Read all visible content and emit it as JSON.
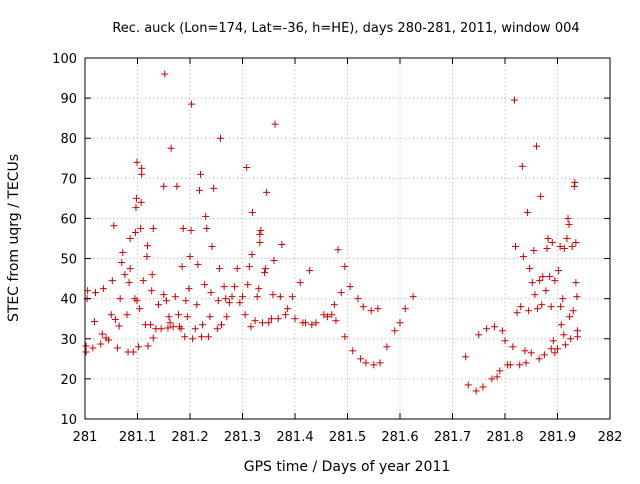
{
  "chart_data": {
    "type": "scatter",
    "title": "Rec. auck (Lon=174, Lat=-36, h=HE), days 280-281, 2011, window 004",
    "xlabel": "GPS time / Days of year 2011",
    "ylabel": "STEC from uqrg / TECUs",
    "xlim": [
      281,
      282
    ],
    "ylim": [
      10,
      100
    ],
    "x_ticks": [
      "281",
      "281.1",
      "281.2",
      "281.3",
      "281.4",
      "281.5",
      "281.6",
      "281.7",
      "281.8",
      "281.9",
      "282"
    ],
    "y_ticks": [
      "10",
      "20",
      "30",
      "40",
      "50",
      "60",
      "70",
      "80",
      "90",
      "100"
    ],
    "grid": true,
    "legend": "none",
    "marker": "+",
    "marker_color": "#cc0000",
    "series": [
      {
        "points": [
          [
            281.002,
            26.7
          ],
          [
            281.002,
            28.2
          ],
          [
            281.004,
            40.0
          ],
          [
            281.005,
            42.0
          ],
          [
            281.015,
            27.7
          ],
          [
            281.018,
            34.3
          ],
          [
            281.02,
            41.5
          ],
          [
            281.03,
            28.7
          ],
          [
            281.033,
            31.2
          ],
          [
            281.035,
            42.5
          ],
          [
            281.04,
            30.2
          ],
          [
            281.045,
            29.7
          ],
          [
            281.05,
            36.0
          ],
          [
            281.052,
            44.5
          ],
          [
            281.055,
            58.2
          ],
          [
            281.058,
            34.8
          ],
          [
            281.062,
            27.7
          ],
          [
            281.065,
            33.2
          ],
          [
            281.067,
            40.0
          ],
          [
            281.07,
            49.0
          ],
          [
            281.072,
            51.5
          ],
          [
            281.076,
            46.0
          ],
          [
            281.08,
            36.0
          ],
          [
            281.082,
            26.7
          ],
          [
            281.084,
            44.0
          ],
          [
            281.086,
            47.5
          ],
          [
            281.086,
            55.0
          ],
          [
            281.092,
            26.7
          ],
          [
            281.095,
            40.0
          ],
          [
            281.096,
            56.5
          ],
          [
            281.097,
            62.7
          ],
          [
            281.098,
            65.0
          ],
          [
            281.099,
            74.0
          ],
          [
            281.099,
            39.5
          ],
          [
            281.102,
            28.0
          ],
          [
            281.104,
            37.5
          ],
          [
            281.106,
            57.5
          ],
          [
            281.107,
            64.0
          ],
          [
            281.108,
            71.0
          ],
          [
            281.108,
            72.5
          ],
          [
            281.111,
            44.5
          ],
          [
            281.115,
            33.5
          ],
          [
            281.118,
            50.5
          ],
          [
            281.119,
            53.2
          ],
          [
            281.12,
            28.2
          ],
          [
            281.125,
            33.5
          ],
          [
            281.127,
            42.0
          ],
          [
            281.128,
            46.0
          ],
          [
            281.13,
            57.5
          ],
          [
            281.13,
            30.2
          ],
          [
            281.135,
            32.5
          ],
          [
            281.14,
            38.5
          ],
          [
            281.145,
            32.5
          ],
          [
            281.15,
            41.0
          ],
          [
            281.15,
            68.0
          ],
          [
            281.152,
            96.0
          ],
          [
            281.155,
            39.5
          ],
          [
            281.158,
            32.7
          ],
          [
            281.16,
            35.5
          ],
          [
            281.162,
            34.0
          ],
          [
            281.164,
            77.5
          ],
          [
            281.168,
            33.0
          ],
          [
            281.172,
            40.5
          ],
          [
            281.175,
            68.0
          ],
          [
            281.178,
            36.0
          ],
          [
            281.18,
            33.0
          ],
          [
            281.183,
            32.5
          ],
          [
            281.185,
            48.0
          ],
          [
            281.187,
            57.5
          ],
          [
            281.19,
            30.5
          ],
          [
            281.192,
            39.5
          ],
          [
            281.195,
            35.5
          ],
          [
            281.198,
            42.5
          ],
          [
            281.2,
            50.5
          ],
          [
            281.202,
            57.0
          ],
          [
            281.203,
            88.5
          ],
          [
            281.205,
            30.0
          ],
          [
            281.21,
            32.5
          ],
          [
            281.213,
            38.5
          ],
          [
            281.215,
            48.5
          ],
          [
            281.218,
            67.0
          ],
          [
            281.22,
            71.0
          ],
          [
            281.222,
            30.5
          ],
          [
            281.224,
            33.5
          ],
          [
            281.228,
            43.5
          ],
          [
            281.23,
            60.5
          ],
          [
            281.232,
            57.5
          ],
          [
            281.235,
            30.5
          ],
          [
            281.238,
            35.5
          ],
          [
            281.24,
            41.5
          ],
          [
            281.242,
            53.0
          ],
          [
            281.245,
            67.5
          ],
          [
            281.252,
            32.5
          ],
          [
            281.254,
            39.5
          ],
          [
            281.256,
            47.5
          ],
          [
            281.258,
            80.0
          ],
          [
            281.26,
            33.5
          ],
          [
            281.265,
            43.0
          ],
          [
            281.268,
            40.0
          ],
          [
            281.27,
            35.5
          ],
          [
            281.275,
            39.0
          ],
          [
            281.28,
            40.5
          ],
          [
            281.285,
            43.0
          ],
          [
            281.29,
            47.5
          ],
          [
            281.295,
            39.0
          ],
          [
            281.3,
            40.5
          ],
          [
            281.305,
            36.0
          ],
          [
            281.308,
            72.7
          ],
          [
            281.31,
            43.5
          ],
          [
            281.313,
            48.0
          ],
          [
            281.316,
            33.0
          ],
          [
            281.318,
            51.0
          ],
          [
            281.319,
            61.5
          ],
          [
            281.324,
            34.5
          ],
          [
            281.328,
            40.5
          ],
          [
            281.331,
            42.5
          ],
          [
            281.333,
            54.0
          ],
          [
            281.333,
            56.0
          ],
          [
            281.335,
            57.0
          ],
          [
            281.338,
            34.0
          ],
          [
            281.342,
            46.5
          ],
          [
            281.344,
            47.5
          ],
          [
            281.346,
            66.5
          ],
          [
            281.35,
            34.0
          ],
          [
            281.355,
            35.0
          ],
          [
            281.358,
            41.0
          ],
          [
            281.36,
            49.5
          ],
          [
            281.362,
            83.5
          ],
          [
            281.368,
            35.0
          ],
          [
            281.372,
            40.5
          ],
          [
            281.375,
            53.5
          ],
          [
            281.382,
            36.0
          ],
          [
            281.386,
            37.5
          ],
          [
            281.395,
            40.5
          ],
          [
            281.4,
            35.0
          ],
          [
            281.41,
            44.0
          ],
          [
            281.415,
            34.0
          ],
          [
            281.42,
            34.0
          ],
          [
            281.428,
            47.0
          ],
          [
            281.432,
            33.5
          ],
          [
            281.44,
            34.0
          ],
          [
            281.455,
            36.0
          ],
          [
            281.462,
            35.5
          ],
          [
            281.47,
            36.0
          ],
          [
            281.475,
            38.5
          ],
          [
            281.478,
            34.5
          ],
          [
            281.482,
            52.2
          ],
          [
            281.488,
            41.5
          ],
          [
            281.495,
            48.0
          ],
          [
            281.495,
            30.5
          ],
          [
            281.505,
            43.0
          ],
          [
            281.51,
            27.0
          ],
          [
            281.52,
            40.0
          ],
          [
            281.525,
            25.0
          ],
          [
            281.53,
            38.0
          ],
          [
            281.535,
            24.0
          ],
          [
            281.545,
            37.0
          ],
          [
            281.55,
            23.5
          ],
          [
            281.558,
            37.5
          ],
          [
            281.562,
            24.0
          ],
          [
            281.575,
            28.0
          ],
          [
            281.59,
            32.0
          ],
          [
            281.6,
            34.0
          ],
          [
            281.61,
            37.5
          ],
          [
            281.625,
            40.5
          ],
          [
            281.725,
            25.5
          ],
          [
            281.73,
            18.5
          ],
          [
            281.745,
            17.0
          ],
          [
            281.75,
            31.0
          ],
          [
            281.758,
            18.0
          ],
          [
            281.765,
            32.5
          ],
          [
            281.775,
            20.0
          ],
          [
            281.78,
            33.0
          ],
          [
            281.785,
            20.5
          ],
          [
            281.79,
            22.0
          ],
          [
            281.795,
            32.0
          ],
          [
            281.8,
            29.5
          ],
          [
            281.805,
            23.5
          ],
          [
            281.81,
            23.5
          ],
          [
            281.815,
            28.0
          ],
          [
            281.818,
            89.5
          ],
          [
            281.82,
            53.0
          ],
          [
            281.823,
            36.5
          ],
          [
            281.828,
            23.5
          ],
          [
            281.83,
            38.0
          ],
          [
            281.833,
            73.0
          ],
          [
            281.835,
            50.5
          ],
          [
            281.838,
            27.0
          ],
          [
            281.84,
            24.0
          ],
          [
            281.843,
            61.5
          ],
          [
            281.845,
            37.0
          ],
          [
            281.847,
            47.5
          ],
          [
            281.85,
            26.5
          ],
          [
            281.852,
            44.0
          ],
          [
            281.855,
            52.0
          ],
          [
            281.857,
            41.0
          ],
          [
            281.86,
            78.0
          ],
          [
            281.862,
            37.5
          ],
          [
            281.865,
            25.0
          ],
          [
            281.866,
            44.5
          ],
          [
            281.868,
            65.5
          ],
          [
            281.87,
            38.5
          ],
          [
            281.872,
            45.5
          ],
          [
            281.875,
            26.0
          ],
          [
            281.878,
            42.0
          ],
          [
            281.88,
            52.5
          ],
          [
            281.882,
            55.0
          ],
          [
            281.885,
            45.5
          ],
          [
            281.888,
            27.5
          ],
          [
            281.888,
            38.0
          ],
          [
            281.89,
            54.0
          ],
          [
            281.892,
            29.5
          ],
          [
            281.895,
            44.5
          ],
          [
            281.895,
            26.5
          ],
          [
            281.9,
            27.5
          ],
          [
            281.902,
            47.0
          ],
          [
            281.905,
            53.0
          ],
          [
            281.906,
            38.0
          ],
          [
            281.907,
            33.5
          ],
          [
            281.91,
            40.0
          ],
          [
            281.912,
            31.0
          ],
          [
            281.913,
            52.5
          ],
          [
            281.915,
            28.5
          ],
          [
            281.918,
            55.0
          ],
          [
            281.92,
            60.0
          ],
          [
            281.922,
            58.5
          ],
          [
            281.923,
            35.5
          ],
          [
            281.925,
            30.0
          ],
          [
            281.928,
            53.0
          ],
          [
            281.93,
            37.0
          ],
          [
            281.932,
            68.0
          ],
          [
            281.933,
            69.0
          ],
          [
            281.935,
            44.0
          ],
          [
            281.935,
            54.0
          ],
          [
            281.937,
            40.5
          ],
          [
            281.938,
            30.5
          ],
          [
            281.938,
            32.0
          ]
        ]
      }
    ]
  }
}
